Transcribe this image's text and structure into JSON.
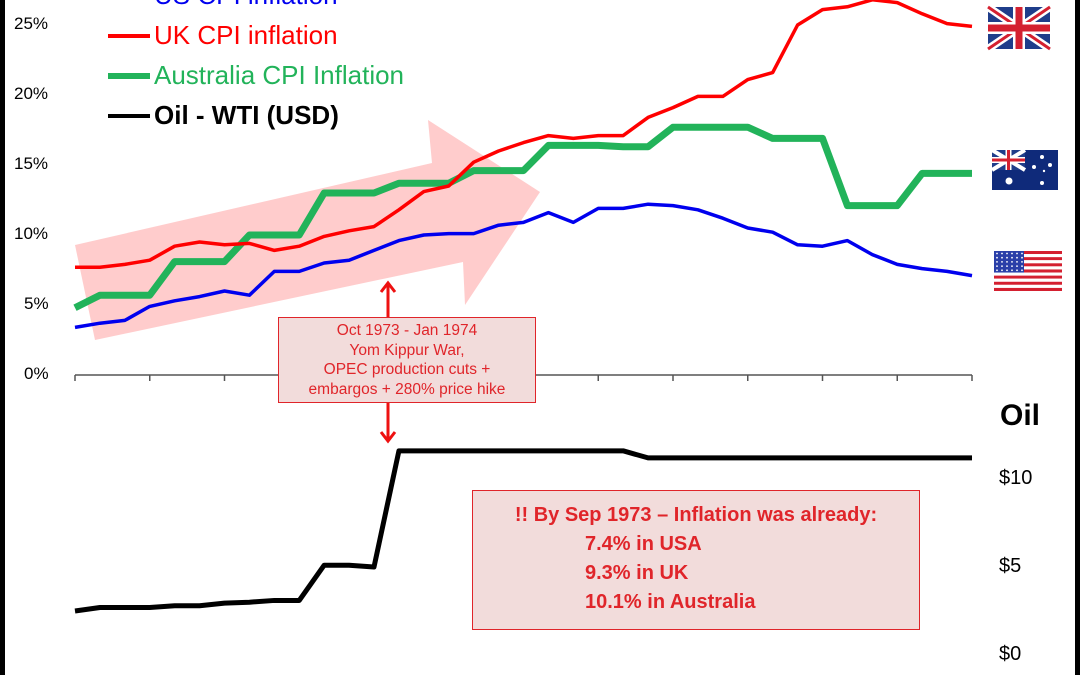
{
  "chart_data": [
    {
      "type": "line",
      "title": "",
      "ylabel": "",
      "ylim": [
        0,
        25
      ],
      "y_tick_labels": [
        "0%",
        "5%",
        "10%",
        "15%",
        "20%",
        "25%"
      ],
      "grid": false,
      "legend_position": "top-left",
      "series": [
        {
          "name": "US CPI inflation",
          "color": "#0000ee",
          "flag": "usa-flag",
          "values": [
            3.4,
            3.7,
            3.9,
            4.9,
            5.3,
            5.6,
            6.0,
            5.7,
            7.4,
            7.4,
            8.0,
            8.2,
            8.9,
            9.6,
            10.0,
            10.1,
            10.1,
            10.7,
            10.9,
            11.6,
            10.9,
            11.9,
            11.9,
            12.2,
            12.1,
            11.8,
            11.2,
            10.5,
            10.2,
            9.3,
            9.2,
            9.6,
            8.6,
            7.9,
            7.6,
            7.4,
            7.1
          ]
        },
        {
          "name": "UK CPI inflation",
          "color": "#ff0000",
          "flag": "uk-flag",
          "values": [
            7.7,
            7.7,
            7.9,
            8.2,
            9.2,
            9.5,
            9.3,
            9.4,
            8.9,
            9.2,
            9.9,
            10.3,
            10.6,
            11.8,
            13.1,
            13.5,
            15.2,
            16.0,
            16.6,
            17.1,
            16.9,
            17.1,
            17.1,
            18.4,
            19.1,
            19.9,
            19.9,
            21.1,
            21.6,
            25.0,
            26.1,
            26.3,
            26.8,
            26.6,
            25.8,
            25.1,
            24.9
          ]
        },
        {
          "name": "Australia CPI Inflation",
          "color": "#22b35a",
          "flag": "australia-flag",
          "values": [
            4.8,
            5.7,
            5.7,
            5.7,
            8.1,
            8.1,
            8.1,
            10.0,
            10.0,
            10.0,
            13.0,
            13.0,
            13.0,
            13.7,
            13.7,
            13.7,
            14.6,
            14.6,
            14.6,
            16.4,
            16.4,
            16.4,
            16.3,
            16.3,
            17.7,
            17.7,
            17.7,
            17.7,
            16.9,
            16.9,
            16.9,
            12.1,
            12.1,
            12.1,
            14.4,
            14.4,
            14.4
          ]
        }
      ]
    },
    {
      "type": "line",
      "title": "",
      "ylabel": "Oil",
      "ylim": [
        0,
        11.2
      ],
      "y_tick_labels": [
        "$0",
        "$5",
        "$10"
      ],
      "grid": false,
      "series": [
        {
          "name": "Oil - WTI (USD)",
          "color": "#000000",
          "values": [
            2.5,
            2.7,
            2.7,
            2.7,
            2.8,
            2.8,
            2.95,
            3.0,
            3.1,
            3.1,
            5.1,
            5.1,
            5.0,
            11.6,
            11.6,
            11.6,
            11.6,
            11.6,
            11.6,
            11.6,
            11.6,
            11.6,
            11.6,
            11.2,
            11.2,
            11.2,
            11.2,
            11.2,
            11.2,
            11.2,
            11.2,
            11.2,
            11.2,
            11.2,
            11.2,
            11.2,
            11.2
          ]
        }
      ]
    }
  ],
  "annotations": {
    "event_box": [
      "Oct 1973 - Jan 1974",
      "Yom Kippur War,",
      "OPEC production cuts +",
      "embargos + 280% price hike"
    ],
    "note_box": {
      "headline": "!! By Sep 1973 – Inflation was already:",
      "lines": [
        "7.4% in USA",
        "9.3% in UK",
        "10.1% in Australia"
      ]
    },
    "arrow_color": "#ff9a9a",
    "box_fill": "#f2dcdb"
  }
}
